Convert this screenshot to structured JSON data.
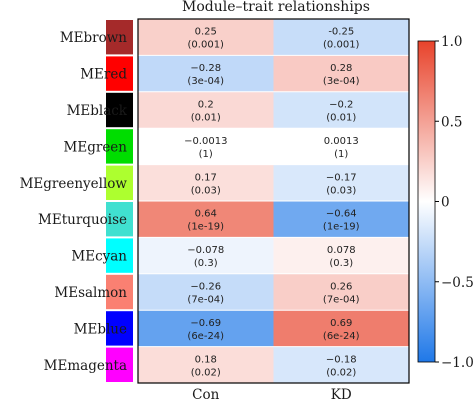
{
  "chart_data": {
    "type": "heatmap",
    "title": "Module–trait relationships",
    "columns": [
      "Con",
      "KD"
    ],
    "rows": [
      {
        "name": "MEbrown",
        "color": "#A52A2A",
        "values": [
          "0.25",
          "-0.25"
        ],
        "pvalues": [
          "(0.001)",
          "(0.001)"
        ]
      },
      {
        "name": "MEred",
        "color": "#FF0000",
        "values": [
          "−0.28",
          "0.28"
        ],
        "pvalues": [
          "(3e-04)",
          "(3e-04)"
        ]
      },
      {
        "name": "MEblack",
        "color": "#000000",
        "values": [
          "0.2",
          "−0.2"
        ],
        "pvalues": [
          "(0.01)",
          "(0.01)"
        ]
      },
      {
        "name": "MEgreen",
        "color": "#00DD00",
        "values": [
          "−0.0013",
          "0.0013"
        ],
        "pvalues": [
          "(1)",
          "(1)"
        ]
      },
      {
        "name": "MEgreenyellow",
        "color": "#ADFF2F",
        "values": [
          "0.17",
          "−0.17"
        ],
        "pvalues": [
          "(0.03)",
          "(0.03)"
        ]
      },
      {
        "name": "MEturquoise",
        "color": "#40E0D0",
        "values": [
          "0.64",
          "−0.64"
        ],
        "pvalues": [
          "(1e-19)",
          "(1e-19)"
        ]
      },
      {
        "name": "MEcyan",
        "color": "#00FFFF",
        "values": [
          "−0.078",
          "0.078"
        ],
        "pvalues": [
          "(0.3)",
          "(0.3)"
        ]
      },
      {
        "name": "MEsalmon",
        "color": "#FA8072",
        "values": [
          "−0.26",
          "0.26"
        ],
        "pvalues": [
          "(7e-04)",
          "(7e-04)"
        ]
      },
      {
        "name": "MEblue",
        "color": "#0000FF",
        "values": [
          "−0.69",
          "0.69"
        ],
        "pvalues": [
          "(6e-24)",
          "(6e-24)"
        ]
      },
      {
        "name": "MEmagenta",
        "color": "#FF00FF",
        "values": [
          "0.18",
          "−0.18"
        ],
        "pvalues": [
          "(0.02)",
          "(0.02)"
        ]
      }
    ],
    "color_scale": {
      "min": -1.0,
      "max": 1.0,
      "ticks": [
        "1.0",
        "0.5",
        "0",
        "−0.5",
        "−1.0"
      ],
      "low_color": "#1F78E8",
      "mid_color": "#FFFFFF",
      "high_color": "#E8432B"
    }
  }
}
